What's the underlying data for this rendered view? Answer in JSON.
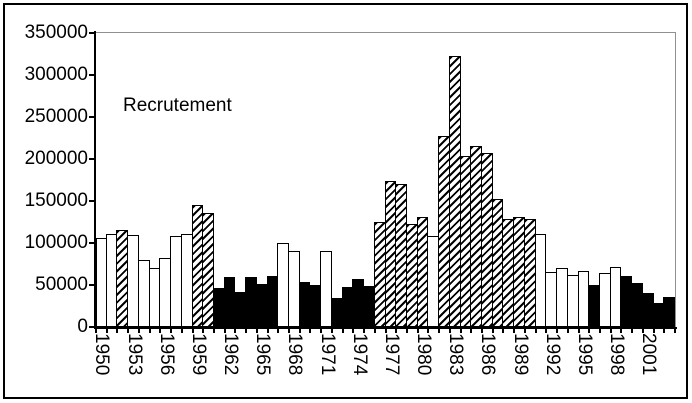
{
  "title_label": "Recrutement",
  "colors": {
    "bar_outline": "#000000",
    "bar_black_fill": "#000000",
    "bar_white_fill": "#ffffff",
    "hatch_stripe": "#000000",
    "plot_secondary_border": "#909090",
    "axis": "#000000",
    "background": "#ffffff"
  },
  "y_axis": {
    "labels": [
      "350000",
      "300000",
      "250000",
      "200000",
      "150000",
      "100000",
      "50000",
      "0"
    ],
    "min": 0,
    "max": 350000,
    "tick_step": 50000
  },
  "x_axis": {
    "labels": [
      "1950",
      "1953",
      "1956",
      "1959",
      "1962",
      "1965",
      "1968",
      "1971",
      "1974",
      "1977",
      "1980",
      "1983",
      "1986",
      "1989",
      "1992",
      "1995",
      "1998",
      "2001"
    ],
    "label_every_n_years": 3
  },
  "chart_data": {
    "type": "bar",
    "title": "Recrutement",
    "xlabel": "",
    "ylabel": "",
    "ylim": [
      0,
      350000
    ],
    "grid": "top-border-only",
    "legend": "none",
    "x": [
      1950,
      1951,
      1952,
      1953,
      1954,
      1955,
      1956,
      1957,
      1958,
      1959,
      1960,
      1961,
      1962,
      1963,
      1964,
      1965,
      1966,
      1967,
      1968,
      1969,
      1970,
      1971,
      1972,
      1973,
      1974,
      1975,
      1976,
      1977,
      1978,
      1979,
      1980,
      1981,
      1982,
      1983,
      1984,
      1985,
      1986,
      1987,
      1988,
      1989,
      1990,
      1991,
      1992,
      1993,
      1994,
      1995,
      1996,
      1997,
      1998,
      1999,
      2000,
      2001,
      2002,
      2003
    ],
    "values": [
      106000,
      111000,
      115000,
      110000,
      80000,
      70000,
      82000,
      108000,
      111000,
      145000,
      136000,
      47000,
      59000,
      42000,
      59000,
      51000,
      61000,
      100000,
      90000,
      53000,
      50000,
      90000,
      35000,
      48000,
      57000,
      49000,
      125000,
      174000,
      170000,
      123000,
      131000,
      108000,
      227000,
      323000,
      203000,
      216000,
      207000,
      152000,
      129000,
      131000,
      129000,
      111000,
      65000,
      70000,
      62000,
      67000,
      50000,
      64000,
      71000,
      61000,
      52000,
      40000,
      29000,
      36000
    ],
    "fill_styles": [
      "white",
      "white",
      "hatched",
      "white",
      "white",
      "white",
      "white",
      "white",
      "white",
      "hatched",
      "hatched",
      "black",
      "black",
      "black",
      "black",
      "black",
      "black",
      "white",
      "white",
      "black",
      "black",
      "white",
      "black",
      "black",
      "black",
      "black",
      "hatched",
      "hatched",
      "hatched",
      "hatched",
      "hatched",
      "white",
      "hatched",
      "hatched",
      "hatched",
      "hatched",
      "hatched",
      "hatched",
      "hatched",
      "hatched",
      "hatched",
      "white",
      "white",
      "white",
      "white",
      "white",
      "black",
      "white",
      "white",
      "black",
      "black",
      "black",
      "black",
      "black"
    ]
  }
}
